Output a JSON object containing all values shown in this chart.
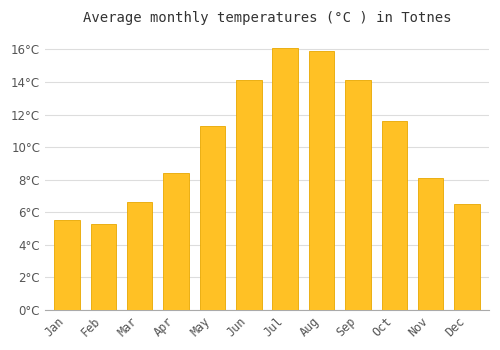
{
  "title": "Average monthly temperatures (°C ) in Totnes",
  "months": [
    "Jan",
    "Feb",
    "Mar",
    "Apr",
    "May",
    "Jun",
    "Jul",
    "Aug",
    "Sep",
    "Oct",
    "Nov",
    "Dec"
  ],
  "values": [
    5.5,
    5.3,
    6.6,
    8.4,
    11.3,
    14.1,
    16.1,
    15.9,
    14.1,
    11.6,
    8.1,
    6.5
  ],
  "bar_color": "#FFC125",
  "bar_edge_color": "#E8A800",
  "background_color": "#FFFFFF",
  "plot_bg_color": "#FFFFFF",
  "grid_color": "#DDDDDD",
  "text_color": "#555555",
  "title_color": "#333333",
  "ylim": [
    0,
    17
  ],
  "yticks": [
    0,
    2,
    4,
    6,
    8,
    10,
    12,
    14,
    16
  ],
  "title_fontsize": 10,
  "tick_fontsize": 8.5,
  "bar_width": 0.7
}
